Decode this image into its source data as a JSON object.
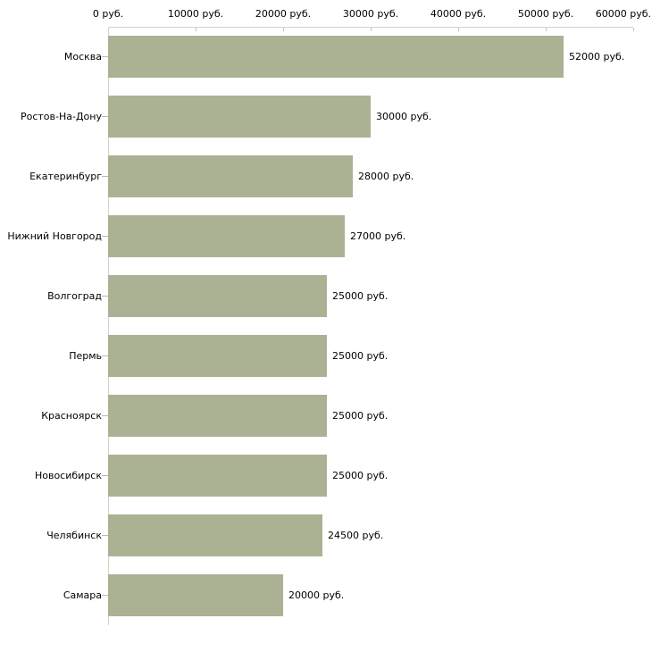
{
  "chart_data": {
    "type": "bar",
    "orientation": "horizontal",
    "title": "",
    "xlabel": "",
    "ylabel": "",
    "unit": "руб.",
    "categories": [
      "Москва",
      "Ростов-На-Дону",
      "Екатеринбург",
      "Нижний Новгород",
      "Волгоград",
      "Пермь",
      "Красноярск",
      "Новосибирск",
      "Челябинск",
      "Самара"
    ],
    "values": [
      52000,
      30000,
      28000,
      27000,
      25000,
      25000,
      25000,
      25000,
      24500,
      20000
    ],
    "value_labels": [
      "52000 руб.",
      "30000 руб.",
      "28000 руб.",
      "27000 руб.",
      "25000 руб.",
      "25000 руб.",
      "25000 руб.",
      "25000 руб.",
      "24500 руб.",
      "20000 руб."
    ],
    "x_ticks": [
      0,
      10000,
      20000,
      30000,
      40000,
      50000,
      60000
    ],
    "x_tick_labels": [
      "0 руб.",
      "10000 руб.",
      "20000 руб.",
      "30000 руб.",
      "40000 руб.",
      "50000 руб.",
      "60000 руб."
    ],
    "xlim": [
      0,
      60000
    ],
    "grid": false,
    "legend": null,
    "colors": {
      "bar": "#abb294",
      "axis_line": "#d4d4ca",
      "x_tick": "#c8c8a6",
      "y_tick": "#b9b9b1",
      "text": "#000000",
      "background": "#ffffff"
    }
  }
}
